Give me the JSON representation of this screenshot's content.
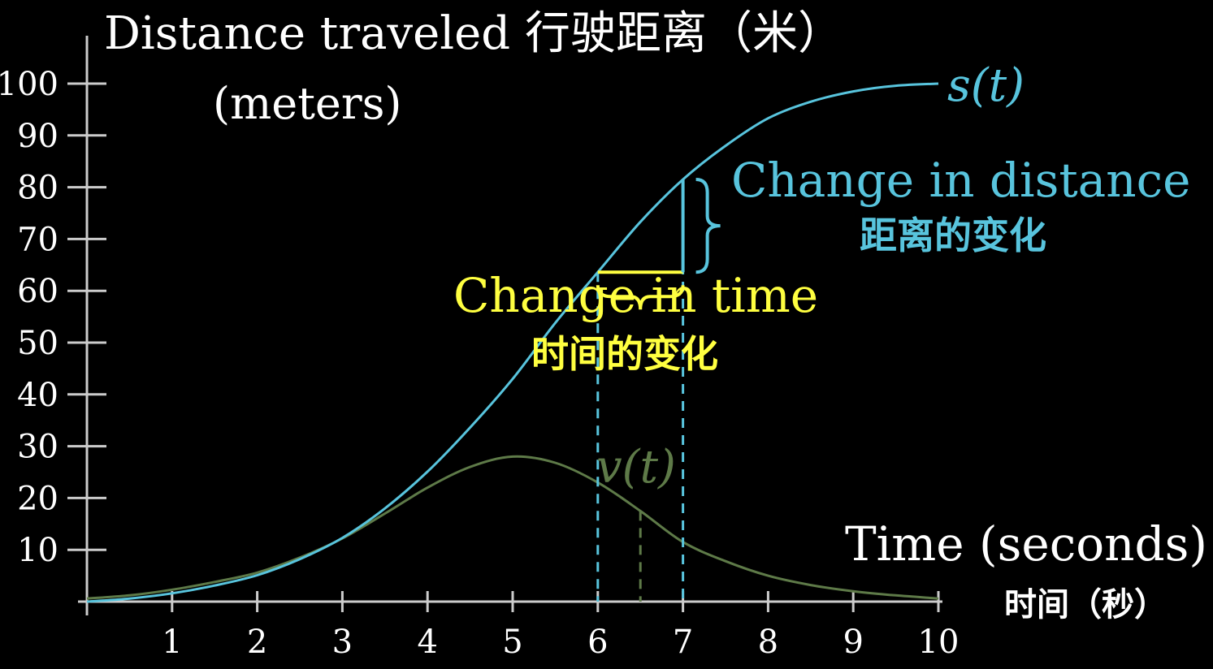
{
  "chart_data": {
    "type": "line",
    "title": "Distance traveled 行驶距离（米）",
    "ylabel": "Distance traveled 行驶距离（米）",
    "ylabel_unit": "(meters)",
    "xlabel": "Time (seconds)",
    "xlabel_cn": "时间（秒）",
    "xlim": [
      0,
      10
    ],
    "ylim": [
      0,
      100
    ],
    "x_ticks": [
      "1",
      "2",
      "3",
      "4",
      "5",
      "6",
      "7",
      "8",
      "9",
      "10"
    ],
    "y_ticks": [
      "10",
      "20",
      "30",
      "40",
      "50",
      "60",
      "70",
      "80",
      "90",
      "100"
    ],
    "series": [
      {
        "name": "s(t)",
        "color": "#58c4dd",
        "x": [
          0,
          0.5,
          1,
          1.5,
          2,
          2.5,
          3,
          3.5,
          4,
          4.5,
          5,
          5.5,
          6,
          6.5,
          7,
          7.5,
          8,
          8.5,
          9,
          9.5,
          10
        ],
        "y": [
          0,
          0.6,
          1.6,
          3.1,
          5.1,
          8.2,
          12.3,
          18.0,
          25.1,
          33.6,
          43.0,
          53.8,
          63.6,
          73.3,
          81.5,
          88.0,
          93.3,
          96.5,
          98.5,
          99.6,
          100
        ]
      },
      {
        "name": "v(t)",
        "color": "#5e7a48",
        "x": [
          0,
          0.5,
          1,
          1.5,
          2,
          2.5,
          3,
          3.5,
          4,
          4.5,
          5,
          5.5,
          6,
          6.5,
          7,
          7.5,
          8,
          8.5,
          9,
          9.5,
          10
        ],
        "y": [
          0.6,
          1.2,
          2.3,
          3.8,
          5.6,
          8.5,
          12.2,
          17.0,
          22.0,
          26.0,
          28.0,
          26.8,
          23.0,
          17.5,
          11.5,
          7.8,
          5.0,
          3.2,
          2.0,
          1.2,
          0.6
        ]
      }
    ],
    "annotations": {
      "s_label": "s(t)",
      "v_label": "v(t)",
      "interval": [
        6,
        7
      ],
      "v_marker_x": 6.5,
      "change_in_distance": "Change in distance",
      "change_in_distance_cn": "距离的变化",
      "change_in_time": "Change in time",
      "change_in_time_cn": "时间的变化"
    },
    "colors": {
      "background": "#000000",
      "axes": "#cccccc",
      "distance": "#58c4dd",
      "velocity": "#5e7a48",
      "time_highlight": "#ffff40"
    }
  }
}
